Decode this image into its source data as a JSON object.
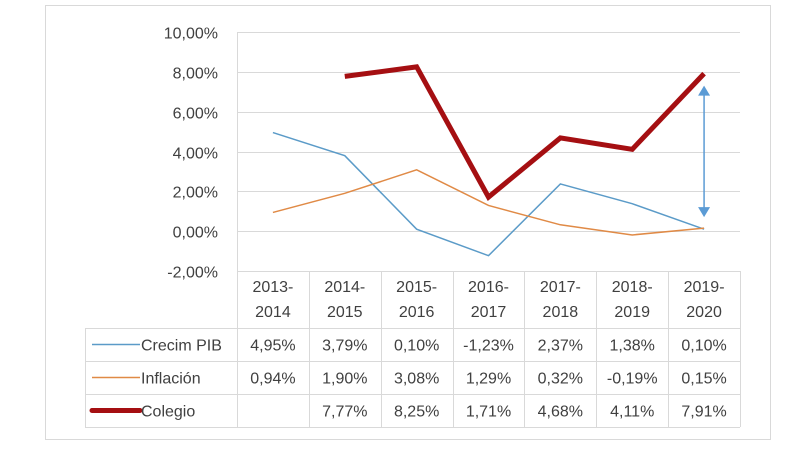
{
  "chart_data": {
    "type": "line",
    "title": "",
    "xlabel": "",
    "ylabel": "",
    "ylim": [
      -2,
      10
    ],
    "y_tick_step": 2,
    "y_tick_labels": [
      "-2,00%",
      "0,00%",
      "2,00%",
      "4,00%",
      "6,00%",
      "8,00%",
      "10,00%"
    ],
    "grid": true,
    "legend": "data-table-left",
    "categories": [
      [
        "2013-",
        "2014"
      ],
      [
        "2014-",
        "2015"
      ],
      [
        "2015-",
        "2016"
      ],
      [
        "2016-",
        "2017"
      ],
      [
        "2017-",
        "2018"
      ],
      [
        "2018-",
        "2019"
      ],
      [
        "2019-",
        "2020"
      ]
    ],
    "series": [
      {
        "name": "Crecim PIB",
        "color": "#5b9bc8",
        "width": "thin",
        "values": [
          4.95,
          3.79,
          0.1,
          -1.23,
          2.37,
          1.38,
          0.1
        ],
        "labels": [
          "4,95%",
          "3,79%",
          "0,10%",
          "-1,23%",
          "2,37%",
          "1,38%",
          "0,10%"
        ]
      },
      {
        "name": "Inflación",
        "color": "#e08a46",
        "width": "thin",
        "values": [
          0.94,
          1.9,
          3.08,
          1.29,
          0.32,
          -0.19,
          0.15
        ],
        "labels": [
          "0,94%",
          "1,90%",
          "3,08%",
          "1,29%",
          "0,32%",
          "-0,19%",
          "0,15%"
        ]
      },
      {
        "name": "Colegio",
        "color": "#a50f12",
        "width": "thick",
        "values": [
          null,
          7.77,
          8.25,
          1.71,
          4.68,
          4.11,
          7.91
        ],
        "labels": [
          "",
          "7,77%",
          "8,25%",
          "1,71%",
          "4,68%",
          "4,11%",
          "7,91%"
        ]
      }
    ],
    "annotations": [
      {
        "type": "double-arrow",
        "category": "2019-2020",
        "from": 0.1,
        "to": 7.91,
        "color": "#5b9bd5"
      }
    ]
  }
}
